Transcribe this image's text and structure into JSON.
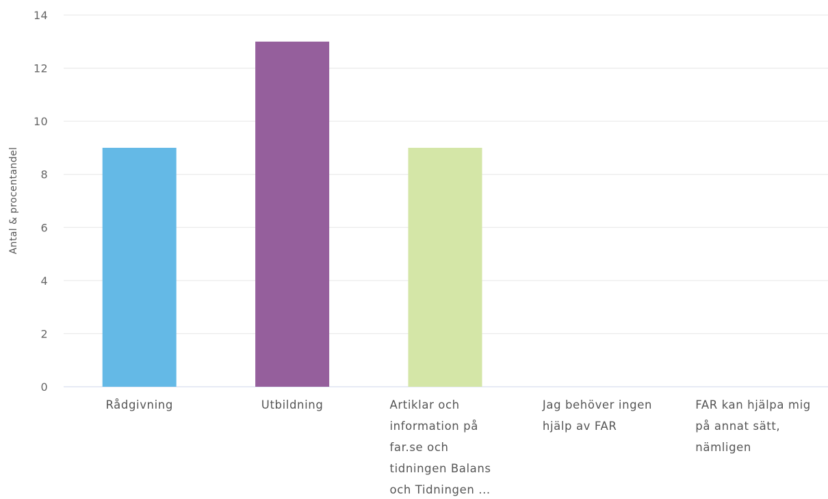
{
  "chart_data": {
    "type": "bar",
    "title": "",
    "xlabel": "",
    "ylabel": "Antal & procentandel",
    "ylim": [
      0,
      14
    ],
    "yticks": [
      0,
      2,
      4,
      6,
      8,
      10,
      12,
      14
    ],
    "grid": true,
    "legend": "none",
    "categories": [
      "Rådgivning",
      "Utbildning",
      "Artiklar och information på far.se och tidningen Balans och Tidningen ...",
      "Jag behöver ingen hjälp av FAR",
      "FAR kan hjälpa mig på annat sätt, nämligen"
    ],
    "category_lines": [
      [
        "Rådgivning"
      ],
      [
        "Utbildning"
      ],
      [
        "Artiklar och",
        "information på",
        "far.se och",
        "tidningen Balans",
        "och Tidningen ..."
      ],
      [
        "Jag behöver ingen",
        "hjälp av FAR"
      ],
      [
        "FAR kan hjälpa mig",
        "på annat sätt,",
        "nämligen"
      ]
    ],
    "values": [
      9,
      13,
      9,
      0,
      0
    ],
    "colors": [
      "#64b9e6",
      "#955f9c",
      "#d4e6a7",
      "#7cb5ec",
      "#434348"
    ]
  }
}
